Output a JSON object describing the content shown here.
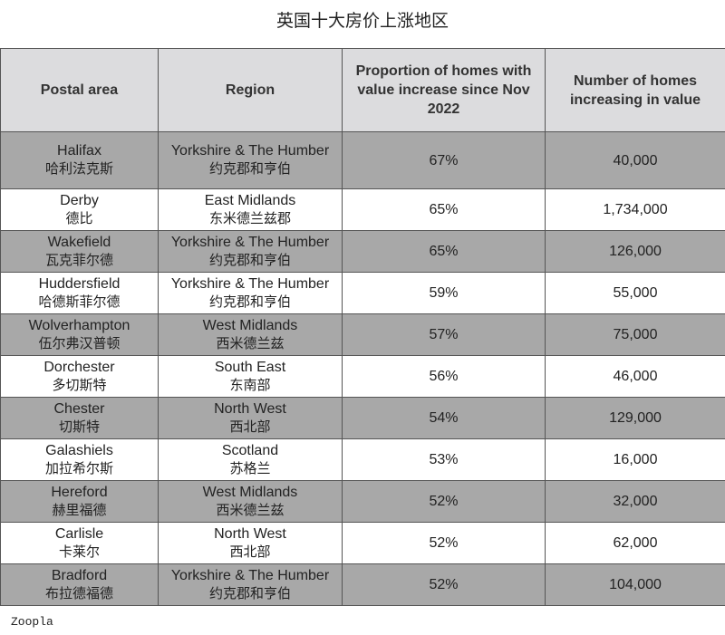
{
  "title": "英国十大房价上涨地区",
  "table": {
    "header": [
      "Postal area",
      "Region",
      "Proportion of homes with value increase since Nov 2022",
      "Number of homes increasing in value"
    ],
    "rows": [
      [
        "Halifax",
        "哈利法克斯",
        "Yorkshire & The Humber",
        "约克郡和亨伯",
        "67%",
        "40,000"
      ],
      [
        "Derby",
        "德比",
        "East Midlands",
        "东米德兰兹郡",
        "65%",
        "1,734,000"
      ],
      [
        "Wakefield",
        "瓦克菲尔德",
        "Yorkshire & The Humber",
        "约克郡和亨伯",
        "65%",
        "126,000"
      ],
      [
        "Huddersfield",
        "哈德斯菲尔德",
        "Yorkshire & The Humber",
        "约克郡和亨伯",
        "59%",
        "55,000"
      ],
      [
        "Wolverhampton",
        "伍尔弗汉普顿",
        "West Midlands",
        "西米德兰兹",
        "57%",
        "75,000"
      ],
      [
        "Dorchester",
        "多切斯特",
        "South East",
        "东南部",
        "56%",
        "46,000"
      ],
      [
        "Chester",
        "切斯特",
        "North West",
        "西北部",
        "54%",
        "129,000"
      ],
      [
        "Galashiels",
        "加拉希尔斯",
        "Scotland",
        "苏格兰",
        "53%",
        "16,000"
      ],
      [
        "Hereford",
        "赫里福德",
        "West Midlands",
        "西米德兰兹",
        "52%",
        "32,000"
      ],
      [
        "Carlisle",
        "卡莱尔",
        "North West",
        "西北部",
        "52%",
        "62,000"
      ],
      [
        "Bradford",
        "布拉德福德",
        "Yorkshire & The Humber",
        "约克郡和亨伯",
        "52%",
        "104,000"
      ]
    ]
  },
  "source": "Zoopla"
}
